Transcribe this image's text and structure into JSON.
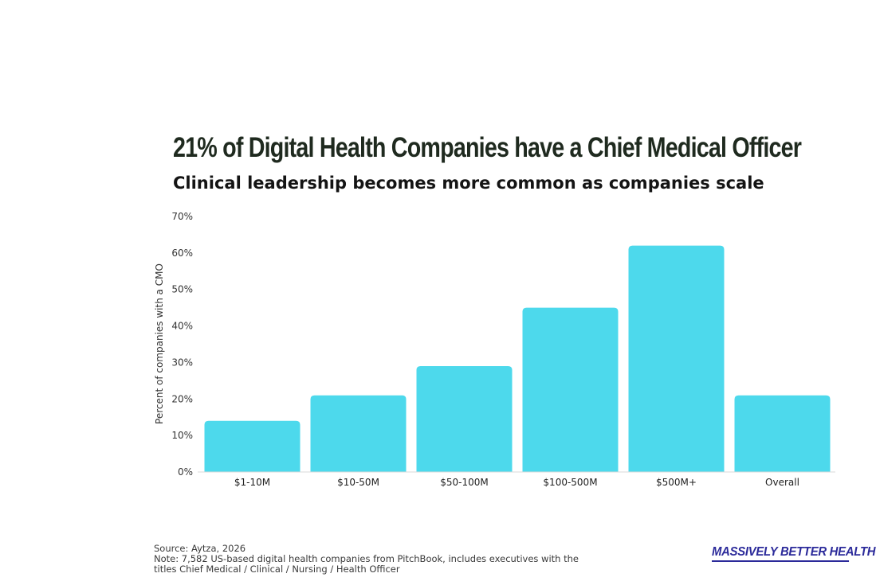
{
  "chart_data": {
    "type": "bar",
    "title": "21% of Digital Health Companies have a Chief Medical Officer",
    "subtitle": "Clinical leadership becomes more common as companies scale",
    "xlabel": "",
    "ylabel": "Percent of companies with a CMO",
    "categories": [
      "$1-10M",
      "$10-50M",
      "$50-100M",
      "$100-500M",
      "$500M+",
      "Overall"
    ],
    "values": [
      14,
      21,
      29,
      45,
      62,
      21
    ],
    "ylim": [
      0,
      70
    ],
    "yticks": [
      0,
      10,
      20,
      30,
      40,
      50,
      60,
      70
    ],
    "ytick_labels": [
      "0%",
      "10%",
      "20%",
      "30%",
      "40%",
      "50%",
      "60%",
      "70%"
    ],
    "bar_color": "#4dd9ec",
    "grid": false,
    "legend": "none"
  },
  "footer": {
    "source": "Source: Aytza, 2026",
    "note_line1": "Note: 7,582  US-based digital health companies from PitchBook, includes executives with the",
    "note_line2": "titles Chief Medical / Clinical / Nursing / Health Officer"
  },
  "brand": {
    "name": "MASSIVELY BETTER HEALTHCARE",
    "color": "#2b2a9a"
  }
}
